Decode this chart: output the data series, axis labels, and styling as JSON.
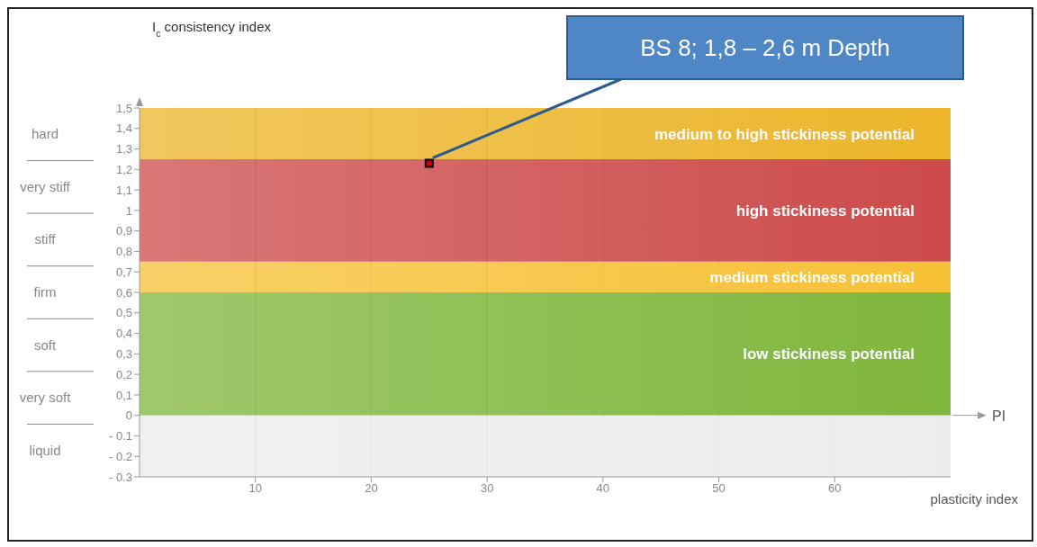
{
  "chart_data": {
    "type": "scatter",
    "ylabel": "I$_{c}$ consistency index",
    "xlabel": "PI",
    "xlim": [
      0,
      70
    ],
    "xticks": [
      10,
      20,
      30,
      40,
      50,
      60
    ],
    "ylim": [
      -0.3,
      1.5
    ],
    "yticks": [
      {
        "value": -0.3,
        "label": "- 0.3"
      },
      {
        "value": -0.2,
        "label": "- 0.2"
      },
      {
        "value": -0.1,
        "label": "- 0.1"
      },
      0,
      {
        "value": 0.1,
        "label": "0,1"
      },
      {
        "value": 0.2,
        "label": "0,2"
      },
      {
        "value": 0.3,
        "label": "0,3"
      },
      {
        "value": 0.4,
        "label": "0,4"
      },
      {
        "value": 0.5,
        "label": "0,5"
      },
      {
        "value": 0.6,
        "label": "0,6"
      },
      {
        "value": 0.7,
        "label": "0,7"
      },
      {
        "value": 0.8,
        "label": "0,8"
      },
      {
        "value": 0.9,
        "label": "0,9"
      },
      1,
      {
        "value": 1.1,
        "label": "1,1"
      },
      {
        "value": 1.2,
        "label": "1,2"
      },
      {
        "value": 1.3,
        "label": "1,3"
      },
      {
        "value": 1.4,
        "label": "1,4"
      },
      {
        "value": 1.5,
        "label": "1,5"
      }
    ],
    "grid": "x",
    "marker": "square",
    "series": [
      {
        "color": "#cc0000",
        "x": [
          25
        ],
        "values": [
          1.23
        ]
      }
    ],
    "bands": [
      {
        "axis": "y",
        "from": 0,
        "to": 0.6,
        "label": "low stickiness potential",
        "color": "#7fb63c"
      },
      {
        "axis": "y",
        "from": 0.6,
        "to": 0.75,
        "label": "medium stickiness potential",
        "color": "#f6c136"
      },
      {
        "axis": "y",
        "from": 0.75,
        "to": 1.25,
        "label": "high stickiness potential",
        "color": "#cd4a4a"
      },
      {
        "axis": "y",
        "from": 1.25,
        "to": 1.5,
        "label": "medium to high stickiness potential",
        "color": "#ecb52a"
      },
      {
        "axis": "y",
        "from": -0.3,
        "to": 0,
        "color": "#ececec"
      }
    ],
    "annotations": [
      {
        "text": "BS 8; 1,8 – 2,6 m Depth",
        "x": 25,
        "y": 1.23
      },
      "plasticity index",
      "hard",
      "very stiff",
      "stiff",
      "firm",
      "soft",
      "very soft",
      "liquid"
    ]
  }
}
